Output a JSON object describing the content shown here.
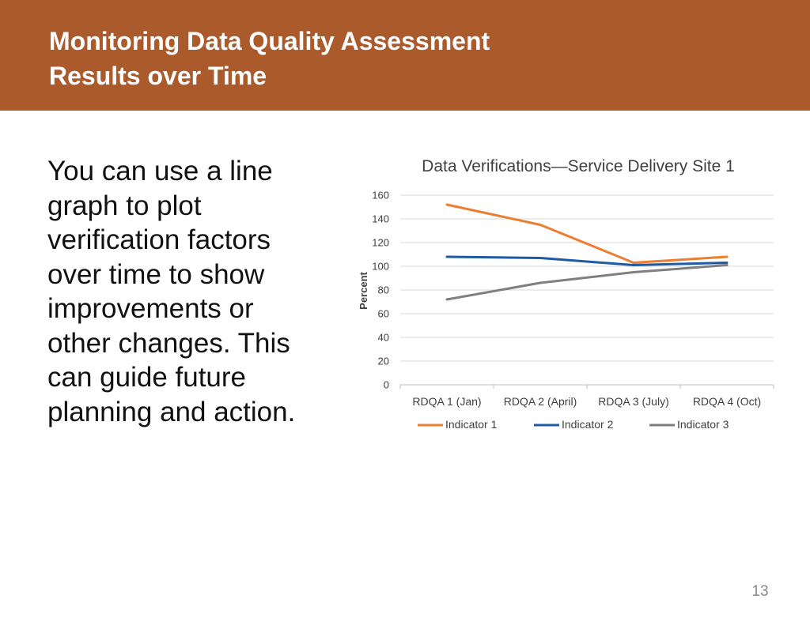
{
  "slide": {
    "title_line1": "Monitoring Data Quality Assessment",
    "title_line2": "Results over Time",
    "body_text": "You can use a line graph to plot verification factors over time to show improvements or other changes. This can guide future planning and action.",
    "page_number": "13",
    "header_color": "#ab5a2b"
  },
  "chart_data": {
    "type": "line",
    "title": "Data Verifications—Service Delivery Site 1",
    "ylabel": "Percent",
    "xlabel": "",
    "categories": [
      "RDQA 1 (Jan)",
      "RDQA 2 (April)",
      "RDQA 3 (July)",
      "RDQA 4 (Oct)"
    ],
    "ylim": [
      0,
      160
    ],
    "yticks": [
      0,
      20,
      40,
      60,
      80,
      100,
      120,
      140,
      160
    ],
    "grid": true,
    "legend_position": "bottom",
    "series": [
      {
        "name": "Indicator 1",
        "color": "#ed7d31",
        "values": [
          152,
          135,
          103,
          108
        ]
      },
      {
        "name": "Indicator 2",
        "color": "#1f5aa6",
        "values": [
          108,
          107,
          101,
          103
        ]
      },
      {
        "name": "Indicator 3",
        "color": "#7f7f7f",
        "values": [
          72,
          86,
          95,
          101
        ]
      }
    ]
  }
}
